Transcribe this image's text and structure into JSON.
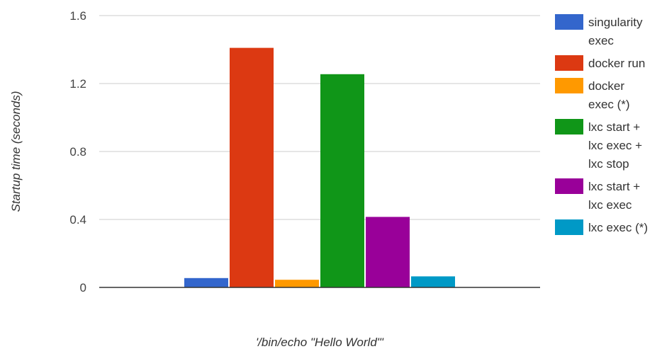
{
  "chart_data": {
    "type": "bar",
    "title": "",
    "xlabel": "'/bin/echo \"Hello World\"'",
    "ylabel": "Startup time (seconds)",
    "ylim": [
      0,
      1.6
    ],
    "yticks": [
      "0",
      "0.4",
      "0.8",
      "1.2",
      "1.6"
    ],
    "grid": true,
    "legend_position": "right",
    "categories": [
      "'/bin/echo \"Hello World\"'"
    ],
    "series": [
      {
        "name": "singularity exec",
        "legend_lines": [
          "singularity",
          "exec"
        ],
        "color": "#3366cc",
        "values": [
          0.055
        ]
      },
      {
        "name": "docker run",
        "legend_lines": [
          "docker run"
        ],
        "color": "#dc3912",
        "values": [
          1.41
        ]
      },
      {
        "name": "docker exec (*)",
        "legend_lines": [
          "docker",
          "exec (*)"
        ],
        "color": "#ff9900",
        "values": [
          0.045
        ]
      },
      {
        "name": "lxc start + lxc exec + lxc stop",
        "legend_lines": [
          "lxc start +",
          "lxc exec +",
          "lxc stop"
        ],
        "color": "#109618",
        "values": [
          1.255
        ]
      },
      {
        "name": "lxc start + lxc exec",
        "legend_lines": [
          "lxc start +",
          "lxc exec"
        ],
        "color": "#990099",
        "values": [
          0.415
        ]
      },
      {
        "name": "lxc exec (*)",
        "legend_lines": [
          "lxc exec (*)"
        ],
        "color": "#0099c6",
        "values": [
          0.065
        ]
      }
    ]
  }
}
